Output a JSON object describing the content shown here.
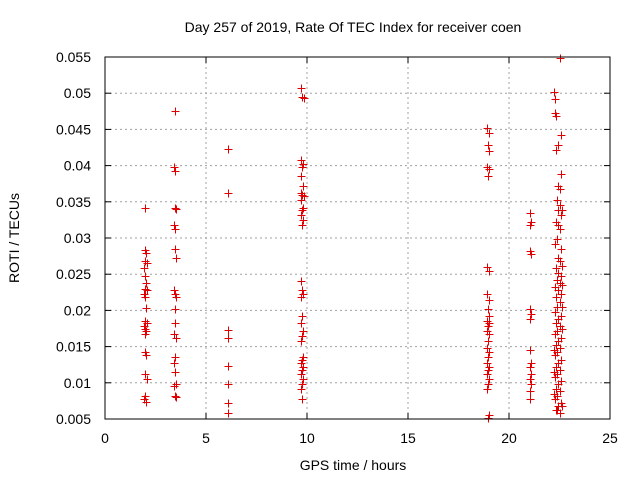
{
  "chart_data": {
    "type": "scatter",
    "title": "Day 257 of 2019, Rate Of TEC Index for receiver coen",
    "xlabel": "GPS time / hours",
    "ylabel": "ROTI / TECUs",
    "xlim": [
      0,
      25
    ],
    "ylim": [
      0.005,
      0.055
    ],
    "xticks": [
      "0",
      "5",
      "10",
      "15",
      "20",
      "25"
    ],
    "xtick_values": [
      0,
      5,
      10,
      15,
      20,
      25
    ],
    "yticks": [
      "0.005",
      "0.01",
      "0.015",
      "0.02",
      "0.025",
      "0.03",
      "0.035",
      "0.04",
      "0.045",
      "0.05",
      "0.055"
    ],
    "ytick_values": [
      0.005,
      0.01,
      0.015,
      0.02,
      0.025,
      0.03,
      0.035,
      0.04,
      0.045,
      0.05,
      0.055
    ],
    "grid": true,
    "marker": "+",
    "color": "#e00000",
    "series": [
      {
        "name": "ROTI",
        "points": [
          [
            2.0,
            0.0342
          ],
          [
            2.0,
            0.0283
          ],
          [
            2.05,
            0.0279
          ],
          [
            2.0,
            0.0268
          ],
          [
            2.1,
            0.0265
          ],
          [
            1.95,
            0.0258
          ],
          [
            2.0,
            0.0248
          ],
          [
            2.05,
            0.0238
          ],
          [
            2.0,
            0.023
          ],
          [
            2.1,
            0.0228
          ],
          [
            1.95,
            0.0222
          ],
          [
            2.0,
            0.0218
          ],
          [
            2.05,
            0.0203
          ],
          [
            2.0,
            0.0185
          ],
          [
            2.1,
            0.0182
          ],
          [
            1.95,
            0.0178
          ],
          [
            2.0,
            0.0175
          ],
          [
            2.05,
            0.0172
          ],
          [
            2.0,
            0.0168
          ],
          [
            2.0,
            0.0142
          ],
          [
            2.05,
            0.0138
          ],
          [
            2.0,
            0.0112
          ],
          [
            2.1,
            0.0105
          ],
          [
            2.0,
            0.0082
          ],
          [
            1.95,
            0.0078
          ],
          [
            2.05,
            0.0074
          ],
          [
            3.45,
            0.0475
          ],
          [
            3.4,
            0.0398
          ],
          [
            3.45,
            0.0392
          ],
          [
            3.45,
            0.0342
          ],
          [
            3.5,
            0.034
          ],
          [
            3.4,
            0.0318
          ],
          [
            3.45,
            0.0312
          ],
          [
            3.45,
            0.0285
          ],
          [
            3.5,
            0.0272
          ],
          [
            3.4,
            0.0228
          ],
          [
            3.45,
            0.0222
          ],
          [
            3.5,
            0.0218
          ],
          [
            3.45,
            0.0202
          ],
          [
            3.45,
            0.0182
          ],
          [
            3.4,
            0.0168
          ],
          [
            3.5,
            0.0162
          ],
          [
            3.45,
            0.0135
          ],
          [
            3.4,
            0.0128
          ],
          [
            3.45,
            0.0115
          ],
          [
            3.5,
            0.0098
          ],
          [
            3.4,
            0.0095
          ],
          [
            3.45,
            0.0082
          ],
          [
            3.5,
            0.0081
          ],
          [
            6.1,
            0.0423
          ],
          [
            6.1,
            0.0362
          ],
          [
            6.1,
            0.0173
          ],
          [
            6.1,
            0.0162
          ],
          [
            6.1,
            0.0123
          ],
          [
            6.1,
            0.0098
          ],
          [
            6.1,
            0.0072
          ],
          [
            6.1,
            0.0058
          ],
          [
            9.7,
            0.0507
          ],
          [
            9.75,
            0.0495
          ],
          [
            9.85,
            0.0493
          ],
          [
            9.7,
            0.0408
          ],
          [
            9.8,
            0.0402
          ],
          [
            9.75,
            0.0398
          ],
          [
            9.7,
            0.0385
          ],
          [
            9.8,
            0.0372
          ],
          [
            9.7,
            0.0362
          ],
          [
            9.75,
            0.036
          ],
          [
            9.85,
            0.0358
          ],
          [
            9.7,
            0.0352
          ],
          [
            9.8,
            0.0342
          ],
          [
            9.75,
            0.0338
          ],
          [
            9.7,
            0.0332
          ],
          [
            9.8,
            0.0325
          ],
          [
            9.75,
            0.0318
          ],
          [
            9.7,
            0.0241
          ],
          [
            9.75,
            0.0228
          ],
          [
            9.8,
            0.0222
          ],
          [
            9.7,
            0.0218
          ],
          [
            9.75,
            0.0192
          ],
          [
            9.7,
            0.0182
          ],
          [
            9.8,
            0.0172
          ],
          [
            9.75,
            0.0165
          ],
          [
            9.7,
            0.0158
          ],
          [
            9.8,
            0.0135
          ],
          [
            9.75,
            0.0132
          ],
          [
            9.7,
            0.0128
          ],
          [
            9.8,
            0.0122
          ],
          [
            9.75,
            0.0118
          ],
          [
            9.7,
            0.0112
          ],
          [
            9.8,
            0.0105
          ],
          [
            9.75,
            0.0098
          ],
          [
            9.7,
            0.0092
          ],
          [
            9.75,
            0.0078
          ],
          [
            18.9,
            0.0452
          ],
          [
            19.0,
            0.0445
          ],
          [
            18.95,
            0.0428
          ],
          [
            19.0,
            0.042
          ],
          [
            18.9,
            0.0398
          ],
          [
            19.0,
            0.0395
          ],
          [
            18.95,
            0.0385
          ],
          [
            18.9,
            0.026
          ],
          [
            19.0,
            0.0255
          ],
          [
            18.9,
            0.0222
          ],
          [
            19.0,
            0.0215
          ],
          [
            18.95,
            0.0202
          ],
          [
            19.0,
            0.0192
          ],
          [
            18.9,
            0.0185
          ],
          [
            19.0,
            0.0182
          ],
          [
            18.95,
            0.0178
          ],
          [
            18.9,
            0.0172
          ],
          [
            19.0,
            0.0168
          ],
          [
            18.95,
            0.0158
          ],
          [
            18.9,
            0.0148
          ],
          [
            19.0,
            0.0142
          ],
          [
            18.95,
            0.0135
          ],
          [
            18.9,
            0.0128
          ],
          [
            19.0,
            0.0122
          ],
          [
            18.95,
            0.0118
          ],
          [
            18.9,
            0.0112
          ],
          [
            19.0,
            0.0105
          ],
          [
            18.95,
            0.0098
          ],
          [
            18.9,
            0.0092
          ],
          [
            19.0,
            0.0055
          ],
          [
            18.95,
            0.0052
          ],
          [
            21.05,
            0.0335
          ],
          [
            21.1,
            0.0322
          ],
          [
            21.05,
            0.0318
          ],
          [
            21.05,
            0.0282
          ],
          [
            21.1,
            0.0278
          ],
          [
            21.05,
            0.0202
          ],
          [
            21.1,
            0.0195
          ],
          [
            21.05,
            0.0188
          ],
          [
            21.05,
            0.0145
          ],
          [
            21.1,
            0.0128
          ],
          [
            21.05,
            0.0122
          ],
          [
            21.1,
            0.0112
          ],
          [
            21.05,
            0.0105
          ],
          [
            21.1,
            0.0098
          ],
          [
            21.05,
            0.0088
          ],
          [
            21.05,
            0.0078
          ],
          [
            22.5,
            0.0548
          ],
          [
            22.25,
            0.0502
          ],
          [
            22.3,
            0.0492
          ],
          [
            22.3,
            0.0472
          ],
          [
            22.35,
            0.0468
          ],
          [
            22.55,
            0.0442
          ],
          [
            22.45,
            0.0428
          ],
          [
            22.35,
            0.0422
          ],
          [
            22.55,
            0.0388
          ],
          [
            22.45,
            0.0372
          ],
          [
            22.5,
            0.0368
          ],
          [
            22.4,
            0.0352
          ],
          [
            22.5,
            0.0345
          ],
          [
            22.45,
            0.0338
          ],
          [
            22.55,
            0.0332
          ],
          [
            22.35,
            0.0322
          ],
          [
            22.45,
            0.0318
          ],
          [
            22.5,
            0.0312
          ],
          [
            22.4,
            0.0298
          ],
          [
            22.3,
            0.0292
          ],
          [
            22.55,
            0.0285
          ],
          [
            22.45,
            0.0272
          ],
          [
            22.5,
            0.0268
          ],
          [
            22.35,
            0.0258
          ],
          [
            22.45,
            0.0252
          ],
          [
            22.55,
            0.0248
          ],
          [
            22.4,
            0.0242
          ],
          [
            22.5,
            0.0238
          ],
          [
            22.3,
            0.0232
          ],
          [
            22.45,
            0.0228
          ],
          [
            22.55,
            0.0222
          ],
          [
            22.35,
            0.0218
          ],
          [
            22.5,
            0.0212
          ],
          [
            22.4,
            0.0205
          ],
          [
            22.3,
            0.0198
          ],
          [
            22.55,
            0.0192
          ],
          [
            22.45,
            0.0188
          ],
          [
            22.35,
            0.0182
          ],
          [
            22.5,
            0.0178
          ],
          [
            22.4,
            0.0172
          ],
          [
            22.3,
            0.0168
          ],
          [
            22.55,
            0.0162
          ],
          [
            22.45,
            0.0158
          ],
          [
            22.35,
            0.0152
          ],
          [
            22.5,
            0.0148
          ],
          [
            22.4,
            0.0142
          ],
          [
            22.3,
            0.0138
          ],
          [
            22.55,
            0.0132
          ],
          [
            22.45,
            0.0128
          ],
          [
            22.35,
            0.0122
          ],
          [
            22.5,
            0.0118
          ],
          [
            22.4,
            0.0112
          ],
          [
            22.3,
            0.0108
          ],
          [
            22.55,
            0.0102
          ],
          [
            22.45,
            0.0098
          ],
          [
            22.35,
            0.0092
          ],
          [
            22.5,
            0.0088
          ],
          [
            22.4,
            0.0082
          ],
          [
            22.3,
            0.0078
          ],
          [
            22.55,
            0.0072
          ],
          [
            22.45,
            0.0068
          ],
          [
            22.35,
            0.0062
          ],
          [
            22.5,
            0.0058
          ],
          [
            22.4,
            0.0062
          ],
          [
            22.6,
            0.0068
          ],
          [
            22.25,
            0.0085
          ],
          [
            22.25,
            0.0115
          ],
          [
            22.25,
            0.0145
          ],
          [
            22.6,
            0.0175
          ],
          [
            22.6,
            0.0205
          ],
          [
            22.6,
            0.0235
          ],
          [
            22.6,
            0.0262
          ],
          [
            22.6,
            0.0338
          ]
        ]
      }
    ]
  }
}
